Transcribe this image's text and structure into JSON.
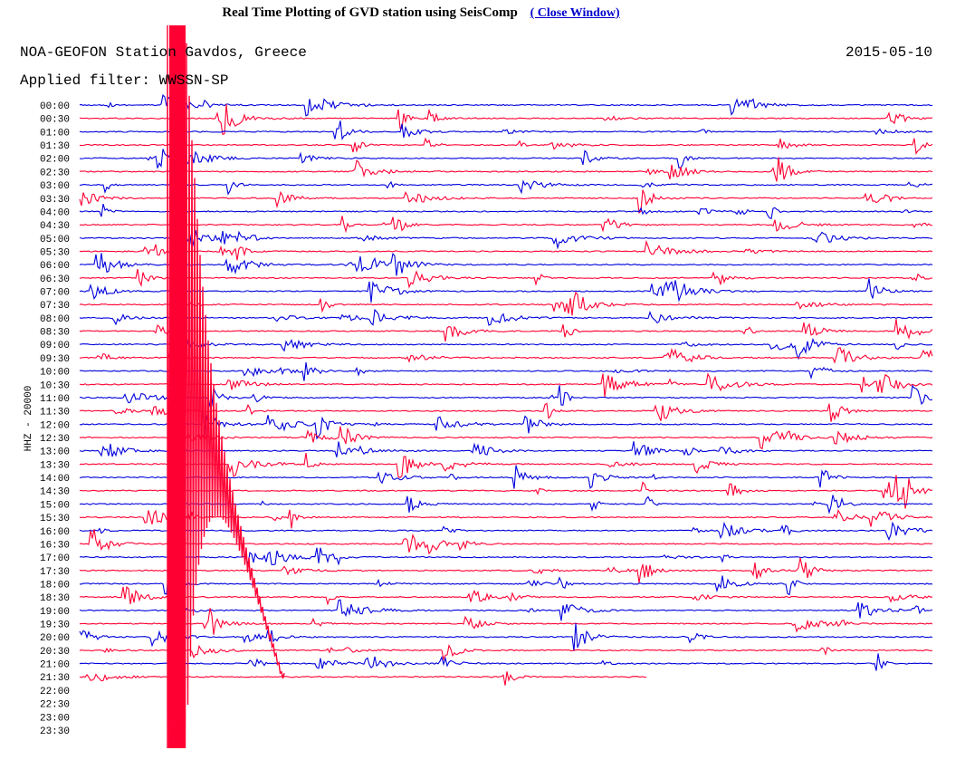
{
  "header": {
    "title": "Real Time Plotting of GVD station using SeisComp",
    "link": "( Close Window)"
  },
  "plot": {
    "station": "NOA-GEOFON Station Gavdos, Greece",
    "date": "2015-05-10",
    "filter": "Applied filter: WWSSN-SP",
    "channel": "HHZ - 20000",
    "time_labels": [
      "00:00",
      "00:30",
      "01:00",
      "01:30",
      "02:00",
      "02:30",
      "03:00",
      "03:30",
      "04:00",
      "04:30",
      "05:00",
      "05:30",
      "06:00",
      "06:30",
      "07:00",
      "07:30",
      "08:00",
      "08:30",
      "09:00",
      "09:30",
      "10:00",
      "10:30",
      "11:00",
      "11:30",
      "12:00",
      "12:30",
      "13:00",
      "13:30",
      "14:00",
      "14:30",
      "15:00",
      "15:30",
      "16:00",
      "16:30",
      "17:00",
      "17:30",
      "18:00",
      "18:30",
      "19:00",
      "19:30",
      "20:00",
      "20:30",
      "21:00",
      "21:30",
      "22:00",
      "22:30",
      "23:00",
      "23:30"
    ]
  }
}
